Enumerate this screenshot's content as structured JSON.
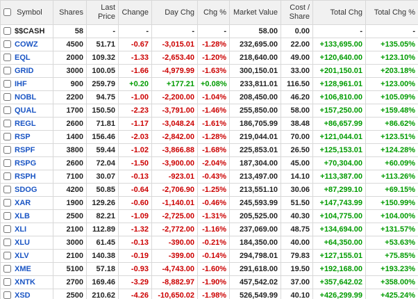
{
  "colors": {
    "positive": "#009b00",
    "negative": "#cc0000",
    "symbol_link": "#1a55c4",
    "header_bg": "#f1f1f1",
    "border": "#d8d8d8"
  },
  "table": {
    "columns": [
      "Symbol",
      "Shares",
      "Last Price",
      "Change",
      "Day Chg",
      "Chg %",
      "Market Value",
      "Cost / Share",
      "Total Chg",
      "Total Chg %"
    ],
    "rows": [
      {
        "symbol": "$$CASH",
        "is_link": false,
        "shares": "58",
        "last_price": "-",
        "change": "-",
        "day_chg": "-",
        "chg_pct": "-",
        "market_value": "58.00",
        "cost_share": "0.00",
        "total_chg": "-",
        "total_chg_pct": "-"
      },
      {
        "symbol": "COWZ",
        "is_link": true,
        "shares": "4500",
        "last_price": "51.71",
        "change": "-0.67",
        "day_chg": "-3,015.01",
        "chg_pct": "-1.28%",
        "market_value": "232,695.00",
        "cost_share": "22.00",
        "total_chg": "+133,695.00",
        "total_chg_pct": "+135.05%"
      },
      {
        "symbol": "EQL",
        "is_link": true,
        "shares": "2000",
        "last_price": "109.32",
        "change": "-1.33",
        "day_chg": "-2,653.40",
        "chg_pct": "-1.20%",
        "market_value": "218,640.00",
        "cost_share": "49.00",
        "total_chg": "+120,640.00",
        "total_chg_pct": "+123.10%"
      },
      {
        "symbol": "GRID",
        "is_link": true,
        "shares": "3000",
        "last_price": "100.05",
        "change": "-1.66",
        "day_chg": "-4,979.99",
        "chg_pct": "-1.63%",
        "market_value": "300,150.01",
        "cost_share": "33.00",
        "total_chg": "+201,150.01",
        "total_chg_pct": "+203.18%"
      },
      {
        "symbol": "IHF",
        "is_link": true,
        "shares": "900",
        "last_price": "259.79",
        "change": "+0.20",
        "day_chg": "+177.21",
        "chg_pct": "+0.08%",
        "market_value": "233,811.01",
        "cost_share": "116.50",
        "total_chg": "+128,961.01",
        "total_chg_pct": "+123.00%"
      },
      {
        "symbol": "NOBL",
        "is_link": true,
        "shares": "2200",
        "last_price": "94.75",
        "change": "-1.00",
        "day_chg": "-2,200.00",
        "chg_pct": "-1.04%",
        "market_value": "208,450.00",
        "cost_share": "46.20",
        "total_chg": "+106,810.00",
        "total_chg_pct": "+105.09%"
      },
      {
        "symbol": "QUAL",
        "is_link": true,
        "shares": "1700",
        "last_price": "150.50",
        "change": "-2.23",
        "day_chg": "-3,791.00",
        "chg_pct": "-1.46%",
        "market_value": "255,850.00",
        "cost_share": "58.00",
        "total_chg": "+157,250.00",
        "total_chg_pct": "+159.48%"
      },
      {
        "symbol": "REGL",
        "is_link": true,
        "shares": "2600",
        "last_price": "71.81",
        "change": "-1.17",
        "day_chg": "-3,048.24",
        "chg_pct": "-1.61%",
        "market_value": "186,705.99",
        "cost_share": "38.48",
        "total_chg": "+86,657.99",
        "total_chg_pct": "+86.62%"
      },
      {
        "symbol": "RSP",
        "is_link": true,
        "shares": "1400",
        "last_price": "156.46",
        "change": "-2.03",
        "day_chg": "-2,842.00",
        "chg_pct": "-1.28%",
        "market_value": "219,044.01",
        "cost_share": "70.00",
        "total_chg": "+121,044.01",
        "total_chg_pct": "+123.51%"
      },
      {
        "symbol": "RSPF",
        "is_link": true,
        "shares": "3800",
        "last_price": "59.44",
        "change": "-1.02",
        "day_chg": "-3,866.88",
        "chg_pct": "-1.68%",
        "market_value": "225,853.01",
        "cost_share": "26.50",
        "total_chg": "+125,153.01",
        "total_chg_pct": "+124.28%"
      },
      {
        "symbol": "RSPG",
        "is_link": true,
        "shares": "2600",
        "last_price": "72.04",
        "change": "-1.50",
        "day_chg": "-3,900.00",
        "chg_pct": "-2.04%",
        "market_value": "187,304.00",
        "cost_share": "45.00",
        "total_chg": "+70,304.00",
        "total_chg_pct": "+60.09%"
      },
      {
        "symbol": "RSPH",
        "is_link": true,
        "shares": "7100",
        "last_price": "30.07",
        "change": "-0.13",
        "day_chg": "-923.01",
        "chg_pct": "-0.43%",
        "market_value": "213,497.00",
        "cost_share": "14.10",
        "total_chg": "+113,387.00",
        "total_chg_pct": "+113.26%"
      },
      {
        "symbol": "SDOG",
        "is_link": true,
        "shares": "4200",
        "last_price": "50.85",
        "change": "-0.64",
        "day_chg": "-2,706.90",
        "chg_pct": "-1.25%",
        "market_value": "213,551.10",
        "cost_share": "30.06",
        "total_chg": "+87,299.10",
        "total_chg_pct": "+69.15%"
      },
      {
        "symbol": "XAR",
        "is_link": true,
        "shares": "1900",
        "last_price": "129.26",
        "change": "-0.60",
        "day_chg": "-1,140.01",
        "chg_pct": "-0.46%",
        "market_value": "245,593.99",
        "cost_share": "51.50",
        "total_chg": "+147,743.99",
        "total_chg_pct": "+150.99%"
      },
      {
        "symbol": "XLB",
        "is_link": true,
        "shares": "2500",
        "last_price": "82.21",
        "change": "-1.09",
        "day_chg": "-2,725.00",
        "chg_pct": "-1.31%",
        "market_value": "205,525.00",
        "cost_share": "40.30",
        "total_chg": "+104,775.00",
        "total_chg_pct": "+104.00%"
      },
      {
        "symbol": "XLI",
        "is_link": true,
        "shares": "2100",
        "last_price": "112.89",
        "change": "-1.32",
        "day_chg": "-2,772.00",
        "chg_pct": "-1.16%",
        "market_value": "237,069.00",
        "cost_share": "48.75",
        "total_chg": "+134,694.00",
        "total_chg_pct": "+131.57%"
      },
      {
        "symbol": "XLU",
        "is_link": true,
        "shares": "3000",
        "last_price": "61.45",
        "change": "-0.13",
        "day_chg": "-390.00",
        "chg_pct": "-0.21%",
        "market_value": "184,350.00",
        "cost_share": "40.00",
        "total_chg": "+64,350.00",
        "total_chg_pct": "+53.63%"
      },
      {
        "symbol": "XLV",
        "is_link": true,
        "shares": "2100",
        "last_price": "140.38",
        "change": "-0.19",
        "day_chg": "-399.00",
        "chg_pct": "-0.14%",
        "market_value": "294,798.01",
        "cost_share": "79.83",
        "total_chg": "+127,155.01",
        "total_chg_pct": "+75.85%"
      },
      {
        "symbol": "XME",
        "is_link": true,
        "shares": "5100",
        "last_price": "57.18",
        "change": "-0.93",
        "day_chg": "-4,743.00",
        "chg_pct": "-1.60%",
        "market_value": "291,618.00",
        "cost_share": "19.50",
        "total_chg": "+192,168.00",
        "total_chg_pct": "+193.23%"
      },
      {
        "symbol": "XNTK",
        "is_link": true,
        "shares": "2700",
        "last_price": "169.46",
        "change": "-3.29",
        "day_chg": "-8,882.97",
        "chg_pct": "-1.90%",
        "market_value": "457,542.02",
        "cost_share": "37.00",
        "total_chg": "+357,642.02",
        "total_chg_pct": "+358.00%"
      },
      {
        "symbol": "XSD",
        "is_link": true,
        "shares": "2500",
        "last_price": "210.62",
        "change": "-4.26",
        "day_chg": "-10,650.02",
        "chg_pct": "-1.98%",
        "market_value": "526,549.99",
        "cost_share": "40.10",
        "total_chg": "+426,299.99",
        "total_chg_pct": "+425.24%"
      }
    ]
  }
}
